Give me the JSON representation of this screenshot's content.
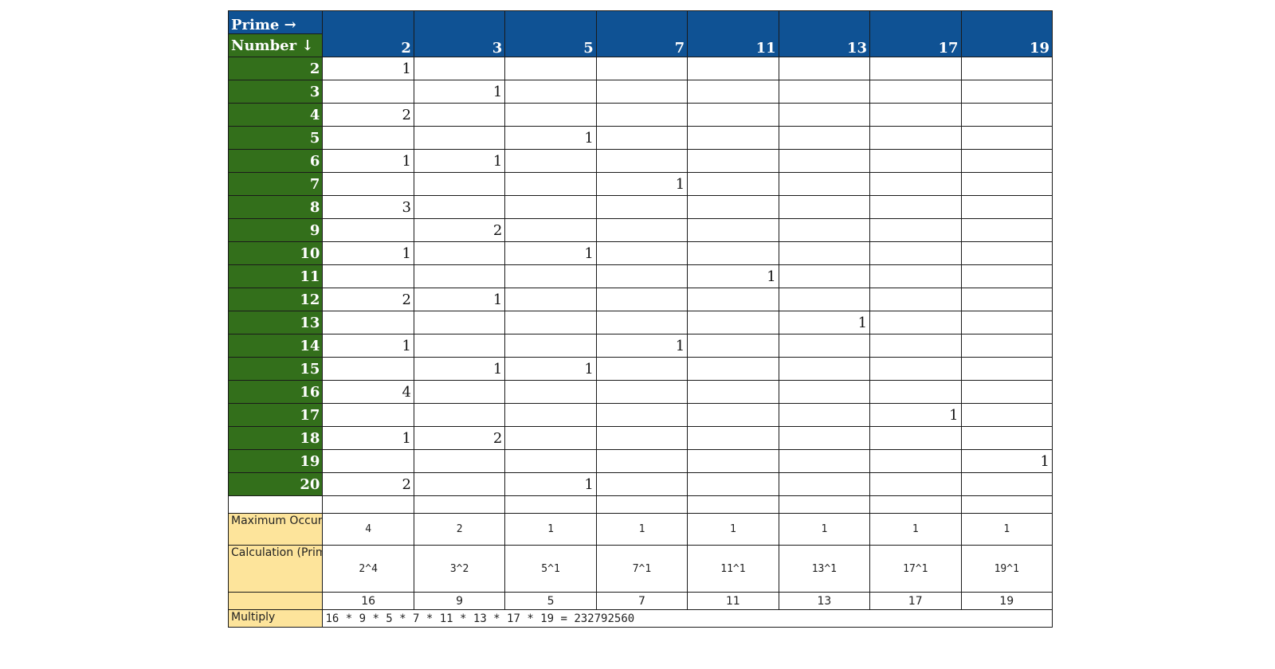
{
  "header": {
    "prime_label": "Prime →",
    "number_label": "Number ↓",
    "primes": [
      "2",
      "3",
      "5",
      "7",
      "11",
      "13",
      "17",
      "19"
    ]
  },
  "rows": [
    {
      "number": "2",
      "cells": [
        "1",
        "",
        "",
        "",
        "",
        "",
        "",
        ""
      ]
    },
    {
      "number": "3",
      "cells": [
        "",
        "1",
        "",
        "",
        "",
        "",
        "",
        ""
      ]
    },
    {
      "number": "4",
      "cells": [
        "2",
        "",
        "",
        "",
        "",
        "",
        "",
        ""
      ]
    },
    {
      "number": "5",
      "cells": [
        "",
        "",
        "1",
        "",
        "",
        "",
        "",
        ""
      ]
    },
    {
      "number": "6",
      "cells": [
        "1",
        "1",
        "",
        "",
        "",
        "",
        "",
        ""
      ]
    },
    {
      "number": "7",
      "cells": [
        "",
        "",
        "",
        "1",
        "",
        "",
        "",
        ""
      ]
    },
    {
      "number": "8",
      "cells": [
        "3",
        "",
        "",
        "",
        "",
        "",
        "",
        ""
      ]
    },
    {
      "number": "9",
      "cells": [
        "",
        "2",
        "",
        "",
        "",
        "",
        "",
        ""
      ]
    },
    {
      "number": "10",
      "cells": [
        "1",
        "",
        "1",
        "",
        "",
        "",
        "",
        ""
      ]
    },
    {
      "number": "11",
      "cells": [
        "",
        "",
        "",
        "",
        "1",
        "",
        "",
        ""
      ]
    },
    {
      "number": "12",
      "cells": [
        "2",
        "1",
        "",
        "",
        "",
        "",
        "",
        ""
      ]
    },
    {
      "number": "13",
      "cells": [
        "",
        "",
        "",
        "",
        "",
        "1",
        "",
        ""
      ]
    },
    {
      "number": "14",
      "cells": [
        "1",
        "",
        "",
        "1",
        "",
        "",
        "",
        ""
      ]
    },
    {
      "number": "15",
      "cells": [
        "",
        "1",
        "1",
        "",
        "",
        "",
        "",
        ""
      ]
    },
    {
      "number": "16",
      "cells": [
        "4",
        "",
        "",
        "",
        "",
        "",
        "",
        ""
      ]
    },
    {
      "number": "17",
      "cells": [
        "",
        "",
        "",
        "",
        "",
        "",
        "1",
        ""
      ]
    },
    {
      "number": "18",
      "cells": [
        "1",
        "2",
        "",
        "",
        "",
        "",
        "",
        ""
      ]
    },
    {
      "number": "19",
      "cells": [
        "",
        "",
        "",
        "",
        "",
        "",
        "",
        "1"
      ]
    },
    {
      "number": "20",
      "cells": [
        "2",
        "",
        "1",
        "",
        "",
        "",
        "",
        ""
      ]
    }
  ],
  "summary": {
    "max_label": "Maximum Occurance",
    "max_values": [
      "4",
      "2",
      "1",
      "1",
      "1",
      "1",
      "1",
      "1"
    ],
    "calc_label": "Calculation (Prime ^ Max Occurance)",
    "calc_values": [
      "2^4",
      "3^2",
      "5^1",
      "7^1",
      "11^1",
      "13^1",
      "17^1",
      "19^1"
    ],
    "power_values": [
      "16",
      "9",
      "5",
      "7",
      "11",
      "13",
      "17",
      "19"
    ],
    "multiply_label": "Multiply",
    "multiply_text": "16 * 9 * 5 * 7 * 11 * 13 * 17 * 19 = 232792560"
  }
}
